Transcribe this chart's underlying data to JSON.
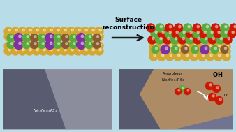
{
  "bg_color": "#b8dce8",
  "title_text": "Surface\nreconstruction",
  "title_fontsize": 6.5,
  "arrow_color": "#1a1a1a",
  "left_panel_bg": "#72748f",
  "right_panel_bg": "#72748f",
  "tan_layer_color": "#b89060",
  "label_left": "Ni$_{0.7}$Fe$_{0.3}$PS$_3$",
  "label_right": "Ni$_{0.7}$Fe$_{0.3}$PS$_3$",
  "label_amorphous": "Amorphous\nNi$_{0.7}$Fe$_{0.3}$PS$_3$",
  "label_OH": "OH$^-$",
  "label_O2": "O$_2$",
  "label_fontsize": 4.0,
  "sulfur_color": "#d4a830",
  "nickel_color": "#5aaa3c",
  "iron_color": "#8b5a30",
  "phosphorus_color": "#8030a0",
  "oxygen_color": "#cc1800"
}
